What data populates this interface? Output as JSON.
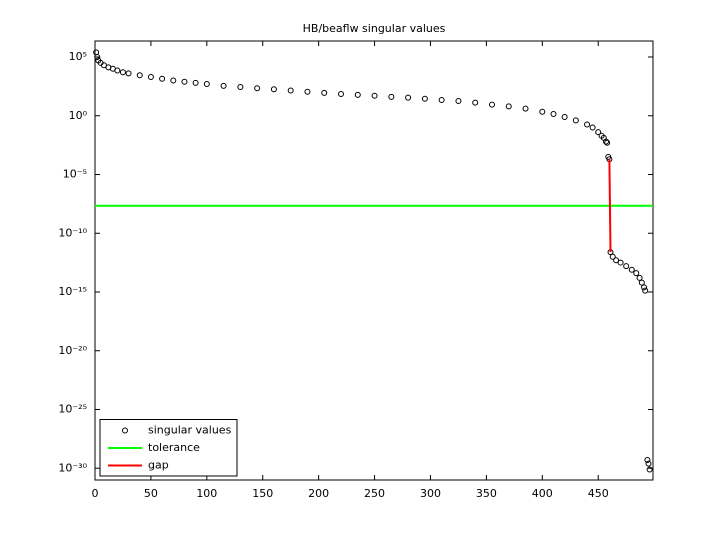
{
  "chart_data": {
    "type": "scatter",
    "title": "HB/beaflw singular values",
    "log_y": true,
    "legend": "lower left",
    "xlim": [
      0,
      499
    ],
    "xticks": [
      0,
      50,
      100,
      150,
      200,
      250,
      300,
      350,
      400,
      450
    ],
    "ylim": [
      1e-31,
      2300000.0
    ],
    "yticks": [
      {
        "value": 100000.0,
        "label": "10⁵"
      },
      {
        "value": 1,
        "label": "10⁰"
      },
      {
        "value": 1e-05,
        "label": "10⁻⁵"
      },
      {
        "value": 1e-10,
        "label": "10⁻¹⁰"
      },
      {
        "value": 1e-15,
        "label": "10⁻¹⁵"
      },
      {
        "value": 1e-20,
        "label": "10⁻²⁰"
      },
      {
        "value": 1e-25,
        "label": "10⁻²⁵"
      },
      {
        "value": 1e-30,
        "label": "10⁻³⁰"
      }
    ],
    "series": [
      {
        "name": "singular values",
        "color": "#000000",
        "kind": "marker",
        "x": [
          1,
          2,
          3,
          5,
          8,
          12,
          16,
          20,
          25,
          30,
          40,
          50,
          60,
          70,
          80,
          90,
          100,
          115,
          130,
          145,
          160,
          175,
          190,
          205,
          220,
          235,
          250,
          265,
          280,
          295,
          310,
          325,
          340,
          355,
          370,
          385,
          400,
          410,
          420,
          430,
          440,
          445,
          450,
          453,
          455,
          457,
          458,
          459,
          460,
          461,
          463,
          466,
          470,
          475,
          480,
          484,
          487,
          489,
          491,
          492,
          494,
          495,
          496
        ],
        "values": [
          250000.0,
          100000.0,
          50000.0,
          32000.0,
          20000.0,
          13000.0,
          10000.0,
          7100.0,
          5000.0,
          4000.0,
          2800.0,
          2000.0,
          1400.0,
          1000.0,
          790.0,
          630.0,
          500.0,
          350.0,
          280.0,
          220.0,
          180.0,
          140.0,
          110.0,
          89,
          71,
          60,
          50,
          40,
          35,
          28,
          22,
          18,
          13,
          8.9,
          6.3,
          4.0,
          2.2,
          1.4,
          0.79,
          0.4,
          0.18,
          0.1,
          0.04,
          0.02,
          0.013,
          0.0063,
          0.005,
          0.00032,
          0.0002,
          2.5e-12,
          1e-12,
          5e-13,
          3.2e-13,
          1.6e-13,
          7.9e-14,
          4e-14,
          1.6e-14,
          6.3e-15,
          2.5e-15,
          1.3e-15,
          5e-30,
          2.5e-30,
          7.9e-31
        ]
      },
      {
        "name": "tolerance",
        "color": "#00ff00",
        "kind": "hline",
        "values": [
          2.2e-08
        ]
      },
      {
        "name": "gap",
        "color": "#ff0000",
        "kind": "line",
        "x": [
          460,
          461
        ],
        "values": [
          0.0002,
          2.5e-12
        ]
      }
    ]
  }
}
